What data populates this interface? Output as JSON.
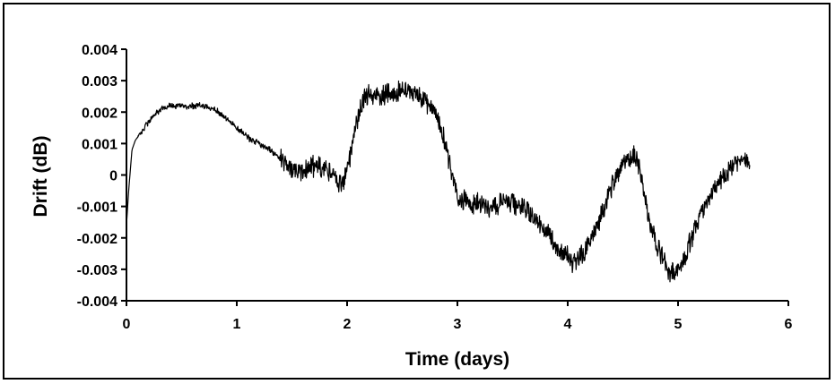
{
  "chart_data": {
    "type": "line",
    "title": "",
    "xlabel": "Time (days)",
    "ylabel": "Drift (dB)",
    "xlim": [
      0,
      6
    ],
    "ylim": [
      -0.004,
      0.004
    ],
    "x_ticks": [
      0,
      1,
      2,
      3,
      4,
      5,
      6
    ],
    "x_tick_labels": [
      "0",
      "1",
      "2",
      "3",
      "4",
      "5",
      "6"
    ],
    "y_ticks": [
      0.004,
      0.003,
      0.002,
      0.001,
      0,
      -0.001,
      -0.002,
      -0.003,
      -0.004
    ],
    "y_tick_labels": [
      "0.004",
      "0.003",
      "0.002",
      "0.001",
      "0",
      "-0.001",
      "-0.002",
      "-0.003",
      "-0.004"
    ],
    "grid": false,
    "legend": "none",
    "line_color": "#000000",
    "series": [
      {
        "x": [
          0.0,
          0.02,
          0.05,
          0.08,
          0.12,
          0.18,
          0.25,
          0.32,
          0.4,
          0.5,
          0.6,
          0.7,
          0.8,
          0.9,
          1.0,
          1.1,
          1.2,
          1.3,
          1.4,
          1.5,
          1.6,
          1.7,
          1.8,
          1.9,
          1.95,
          2.0,
          2.05,
          2.1,
          2.15,
          2.2,
          2.3,
          2.4,
          2.5,
          2.6,
          2.7,
          2.8,
          2.85,
          2.9,
          2.95,
          3.0,
          3.1,
          3.2,
          3.3,
          3.4,
          3.5,
          3.6,
          3.7,
          3.8,
          3.9,
          4.0,
          4.05,
          4.1,
          4.2,
          4.3,
          4.4,
          4.5,
          4.55,
          4.6,
          4.65,
          4.7,
          4.8,
          4.9,
          4.95,
          5.0,
          5.05,
          5.1,
          5.2,
          5.3,
          5.4,
          5.5,
          5.6,
          5.65
        ],
        "y": [
          -0.0016,
          -0.0005,
          0.0008,
          0.0011,
          0.0013,
          0.0016,
          0.0019,
          0.0021,
          0.0022,
          0.0022,
          0.0022,
          0.0022,
          0.0021,
          0.0018,
          0.0015,
          0.0012,
          0.001,
          0.0008,
          0.0005,
          0.0002,
          0.0001,
          0.0003,
          0.0002,
          -0.0001,
          -0.0003,
          0.0002,
          0.001,
          0.0019,
          0.0024,
          0.0026,
          0.0025,
          0.0026,
          0.0027,
          0.0026,
          0.0024,
          0.002,
          0.0015,
          0.0008,
          0.0,
          -0.0007,
          -0.0009,
          -0.0009,
          -0.001,
          -0.0009,
          -0.0009,
          -0.001,
          -0.0013,
          -0.0018,
          -0.0023,
          -0.0026,
          -0.0028,
          -0.0027,
          -0.0021,
          -0.0013,
          -0.0004,
          0.0003,
          0.0005,
          0.0006,
          0.0002,
          -0.0008,
          -0.0022,
          -0.003,
          -0.0031,
          -0.003,
          -0.0027,
          -0.0022,
          -0.0013,
          -0.0006,
          -0.0001,
          0.0003,
          0.0005,
          0.0003
        ],
        "noise": 0.0004
      }
    ]
  }
}
